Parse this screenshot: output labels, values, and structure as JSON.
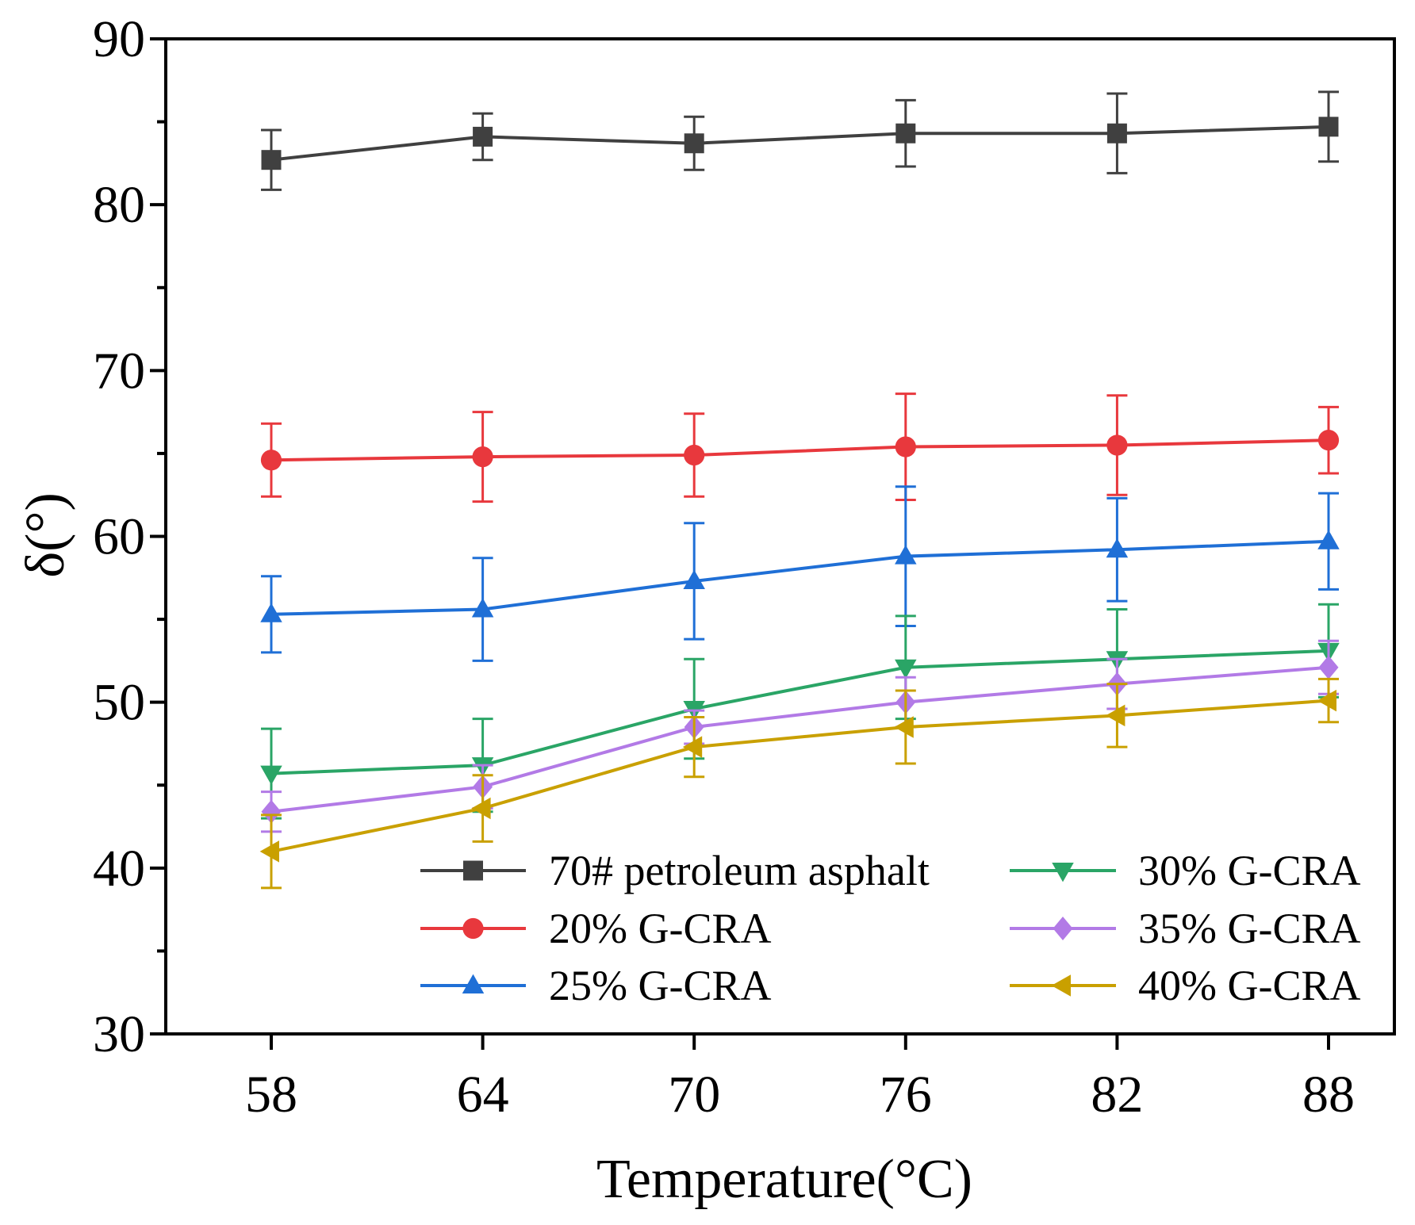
{
  "chart_data": {
    "type": "line",
    "title": "",
    "xlabel": "Temperature(°C)",
    "ylabel": "δ(°)",
    "x": [
      58,
      64,
      70,
      76,
      82,
      88
    ],
    "x_tick_labels": [
      "58",
      "64",
      "70",
      "76",
      "82",
      "88"
    ],
    "ylim": [
      30,
      90
    ],
    "y_ticks": [
      30,
      40,
      50,
      60,
      70,
      80,
      90
    ],
    "y_tick_labels": [
      "30",
      "40",
      "50",
      "60",
      "70",
      "80",
      "90"
    ],
    "grid": false,
    "legend_placement": "bottom-right",
    "series": [
      {
        "name": "70# petroleum asphalt",
        "color": "#404040",
        "marker": "square",
        "values": [
          82.7,
          84.1,
          83.7,
          84.3,
          84.3,
          84.7
        ],
        "errors": [
          1.8,
          1.4,
          1.6,
          2.0,
          2.4,
          2.1
        ]
      },
      {
        "name": "20% G-CRA",
        "color": "#e8383d",
        "marker": "circle",
        "values": [
          64.6,
          64.8,
          64.9,
          65.4,
          65.5,
          65.8
        ],
        "errors": [
          2.2,
          2.7,
          2.5,
          3.2,
          3.0,
          2.0
        ]
      },
      {
        "name": "25% G-CRA",
        "color": "#1f6fd6",
        "marker": "triangle-up",
        "values": [
          55.3,
          55.6,
          57.3,
          58.8,
          59.2,
          59.7
        ],
        "errors": [
          2.3,
          3.1,
          3.5,
          4.2,
          3.1,
          2.9
        ]
      },
      {
        "name": "30% G-CRA",
        "color": "#2aa566",
        "marker": "triangle-down",
        "values": [
          45.7,
          46.2,
          49.6,
          52.1,
          52.6,
          53.1
        ],
        "errors": [
          2.7,
          2.8,
          3.0,
          3.1,
          3.0,
          2.8
        ]
      },
      {
        "name": "35% G-CRA",
        "color": "#b27ae6",
        "marker": "diamond",
        "values": [
          43.4,
          44.9,
          48.5,
          50.0,
          51.1,
          52.1
        ],
        "errors": [
          1.2,
          1.3,
          1.0,
          1.5,
          1.5,
          1.6
        ]
      },
      {
        "name": "40% G-CRA",
        "color": "#c9a000",
        "marker": "triangle-left",
        "values": [
          41.0,
          43.6,
          47.3,
          48.5,
          49.2,
          50.1
        ],
        "errors": [
          2.2,
          2.0,
          1.8,
          2.2,
          1.9,
          1.3
        ]
      }
    ]
  }
}
